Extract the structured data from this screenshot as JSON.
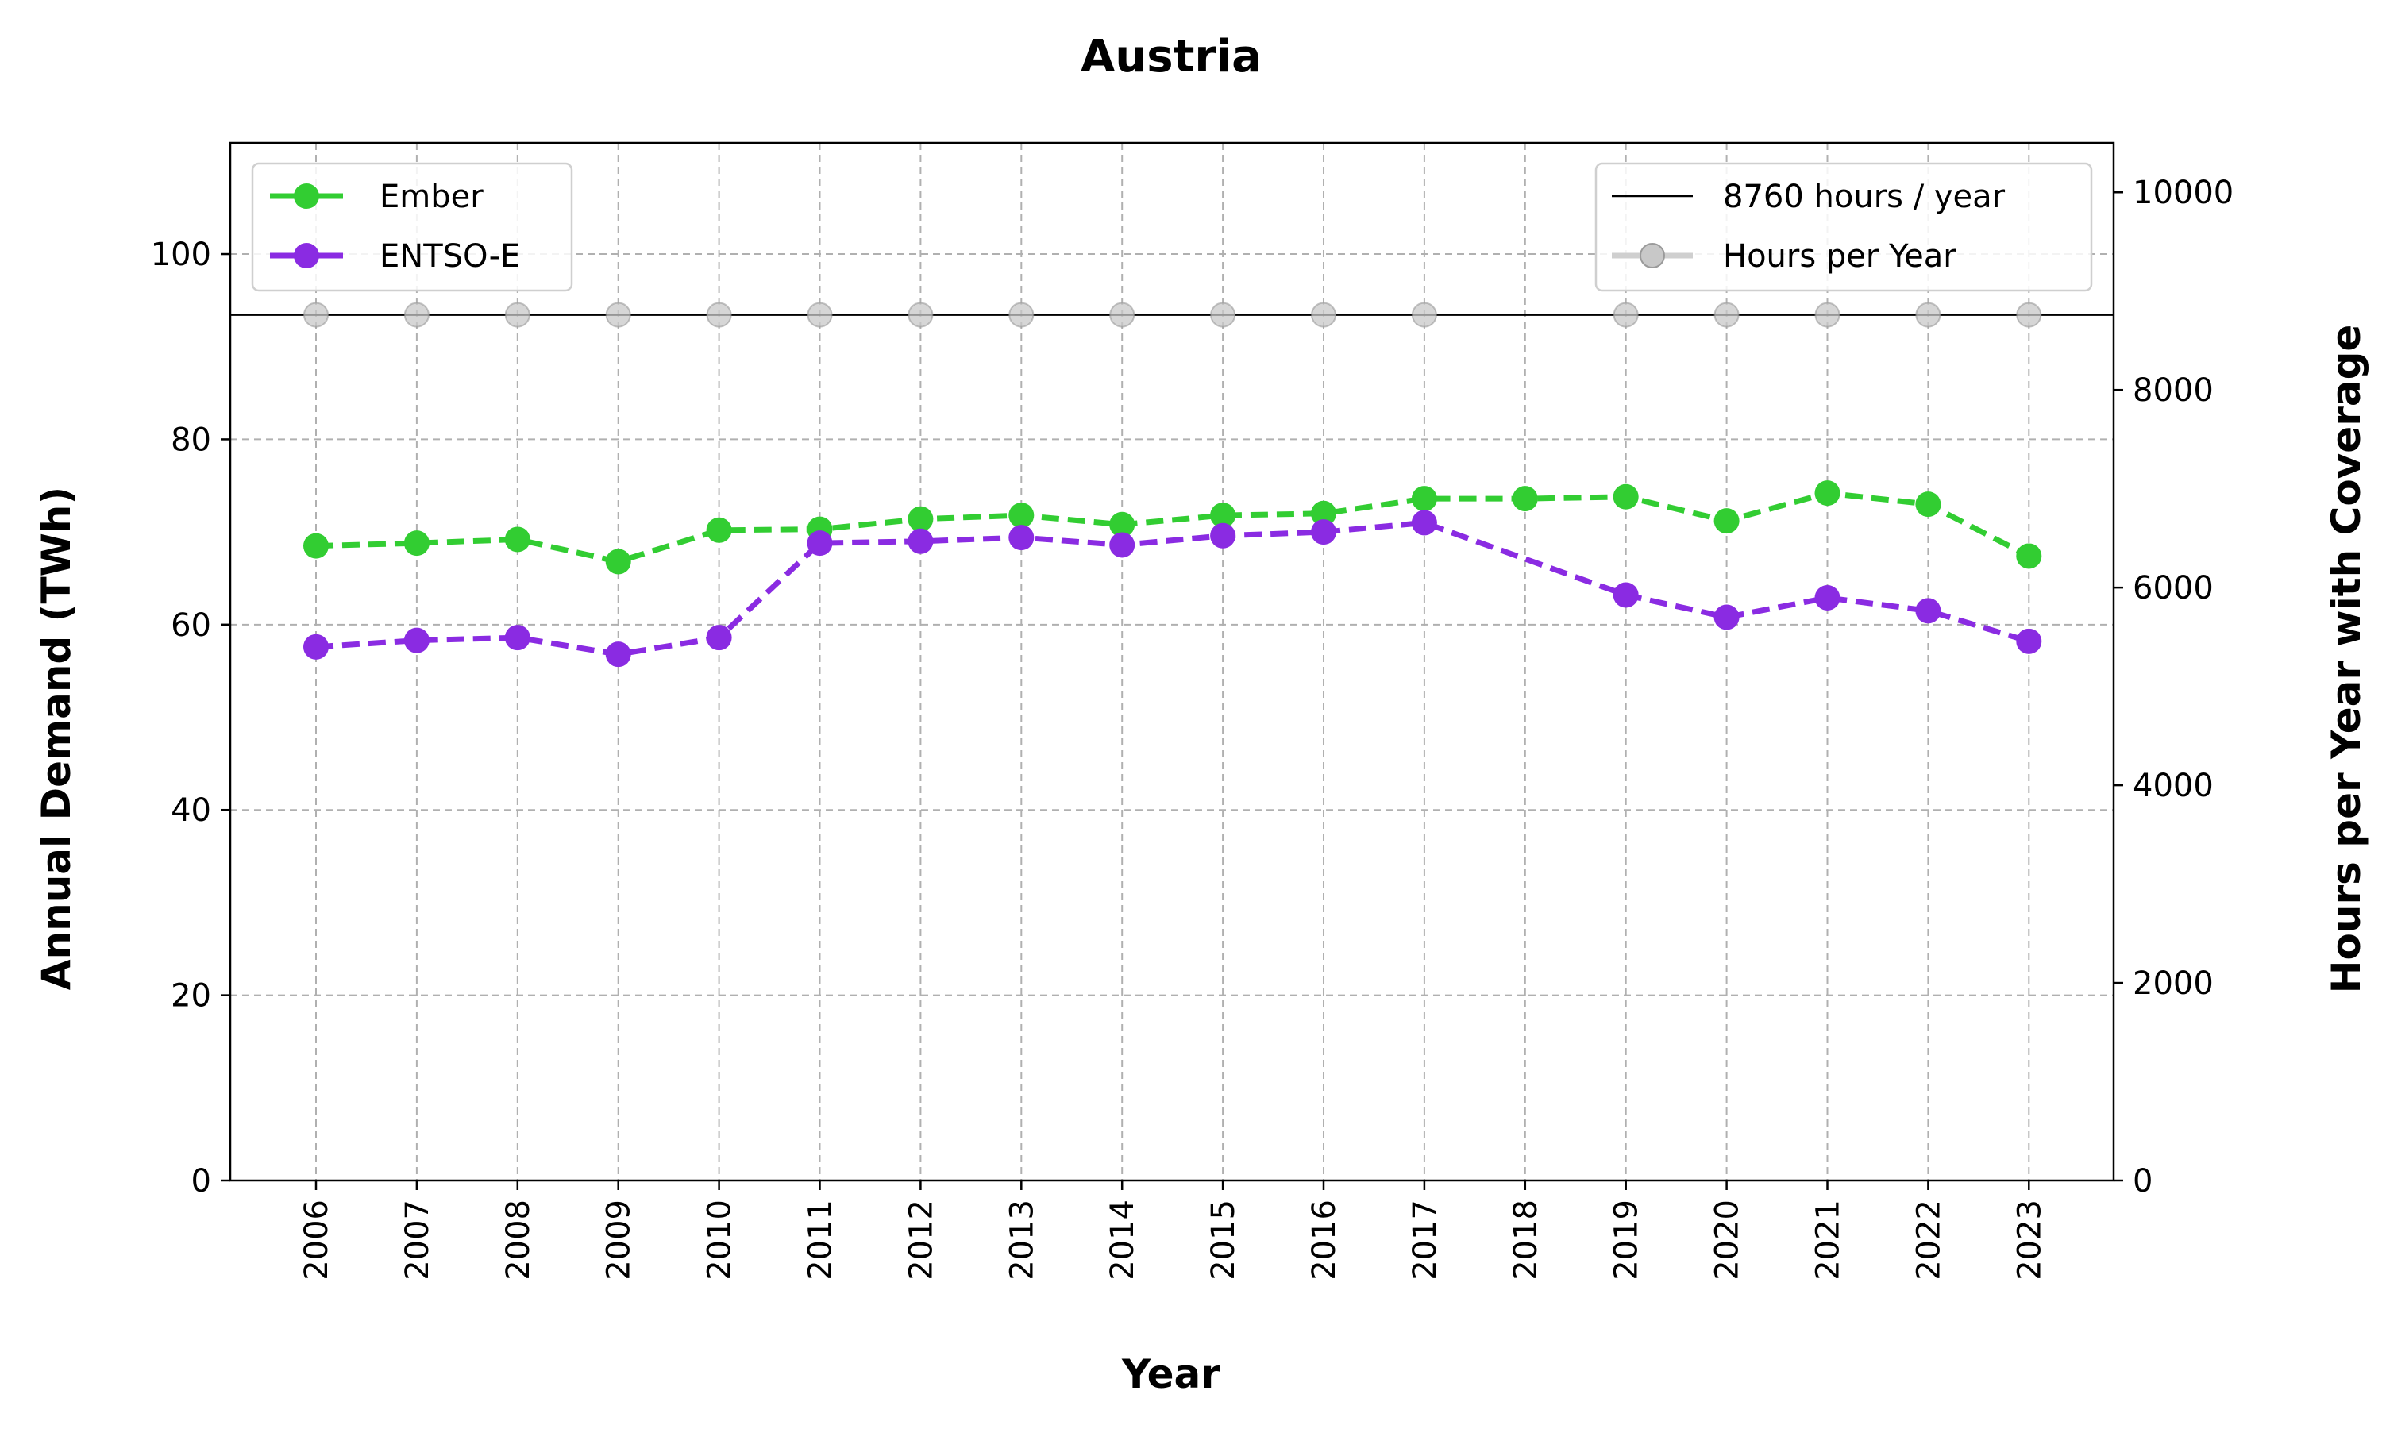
{
  "chart_data": {
    "type": "line",
    "title": "Austria",
    "xlabel": "Year",
    "ylabel": "Annual Demand (TWh)",
    "y2label": "Hours per Year with Coverage",
    "categories": [
      "2006",
      "2007",
      "2008",
      "2009",
      "2010",
      "2011",
      "2012",
      "2013",
      "2014",
      "2015",
      "2016",
      "2017",
      "2018",
      "2019",
      "2020",
      "2021",
      "2022",
      "2023"
    ],
    "ylim": [
      0,
      112
    ],
    "y2lim": [
      0,
      10500
    ],
    "yticks": [
      0,
      20,
      40,
      60,
      80,
      100
    ],
    "y2ticks": [
      0,
      2000,
      4000,
      6000,
      8000,
      10000
    ],
    "grid": true,
    "series": [
      {
        "name": "Ember",
        "axis": "left",
        "color": "#32cd32",
        "style": "dashed-marker",
        "values": [
          68.5,
          68.8,
          69.2,
          66.8,
          70.2,
          70.3,
          71.4,
          71.8,
          70.8,
          71.8,
          72.0,
          73.6,
          73.6,
          73.8,
          71.2,
          74.2,
          73.0,
          67.4
        ]
      },
      {
        "name": "ENTSO-E",
        "axis": "left",
        "color": "#8a2be2",
        "style": "dashed-marker",
        "values": [
          57.6,
          58.3,
          58.6,
          56.8,
          58.6,
          68.8,
          69.0,
          69.4,
          68.6,
          69.6,
          70.0,
          71.0,
          null,
          63.2,
          60.8,
          62.9,
          61.5,
          58.2
        ]
      },
      {
        "name": "Hours per Year",
        "axis": "right",
        "color": "#808080",
        "style": "marker-only",
        "values": [
          8760,
          8760,
          8760,
          8760,
          8760,
          8760,
          8760,
          8760,
          8760,
          8760,
          8760,
          8760,
          null,
          8760,
          8760,
          8760,
          8760,
          8760
        ]
      }
    ],
    "reference_line": {
      "label": "8760 hours / year",
      "value": 8760,
      "axis": "right",
      "color": "#000000"
    },
    "legends": {
      "left": "top-left",
      "right": "top-right"
    }
  }
}
